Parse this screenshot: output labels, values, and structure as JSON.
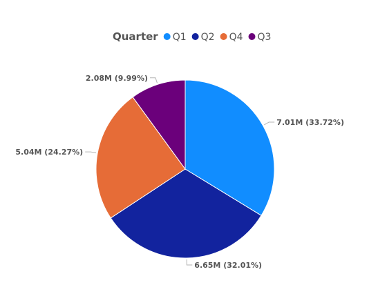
{
  "chart_data": {
    "type": "pie",
    "legend": {
      "title": "Quarter",
      "placement": "top-center",
      "entries": [
        "Q1",
        "Q2",
        "Q4",
        "Q3"
      ]
    },
    "slices": [
      {
        "category": "Q1",
        "value": 7.01,
        "percent": 33.72,
        "label": "7.01M (33.72%)",
        "color": "#118DFF"
      },
      {
        "category": "Q2",
        "value": 6.65,
        "percent": 32.01,
        "label": "6.65M (32.01%)",
        "color": "#12239E"
      },
      {
        "category": "Q4",
        "value": 5.04,
        "percent": 24.27,
        "label": "5.04M (24.27%)",
        "color": "#E66C37"
      },
      {
        "category": "Q3",
        "value": 2.08,
        "percent": 9.99,
        "label": "2.08M (9.99%)",
        "color": "#6B007B"
      }
    ]
  }
}
